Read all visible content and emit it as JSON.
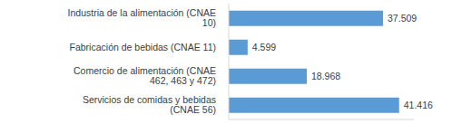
{
  "chart_data": {
    "type": "bar",
    "orientation": "horizontal",
    "categories": [
      "Industria de la alimentación (CNAE 10)",
      "Fabricación de bebidas (CNAE 11)",
      "Comercio de alimentación (CNAE 462, 463 y 472)",
      "Servicios de comidas y bebidas (CNAE 56)"
    ],
    "values": [
      37509,
      4599,
      18968,
      41416
    ],
    "value_labels": [
      "37.509",
      "4.599",
      "18.968",
      "41.416"
    ],
    "data_labels": true,
    "color": "#5b9bd5",
    "xlim": [
      0,
      45000
    ],
    "xticks": [],
    "grid": false,
    "tick_labels": "y"
  }
}
